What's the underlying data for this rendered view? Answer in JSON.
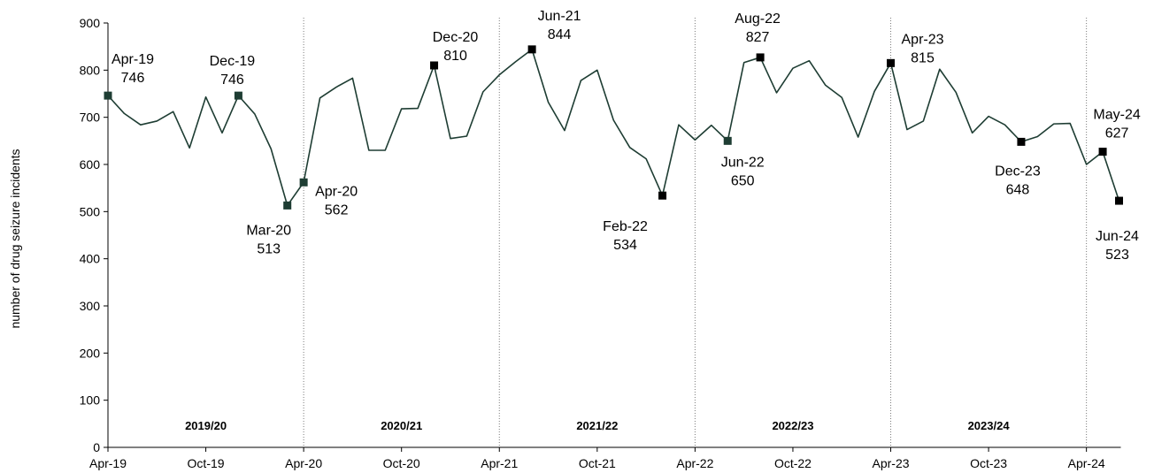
{
  "chart_data": {
    "type": "line",
    "ylabel": "number of drug seizure incidents",
    "xlabel": "",
    "ylim": [
      0,
      900
    ],
    "y_ticks": [
      0,
      100,
      200,
      300,
      400,
      500,
      600,
      700,
      800,
      900
    ],
    "x_tick_labels": [
      "Apr-19",
      "Oct-19",
      "Apr-20",
      "Oct-20",
      "Apr-21",
      "Oct-21",
      "Apr-22",
      "Oct-22",
      "Apr-23",
      "Oct-23",
      "Apr-24"
    ],
    "x_tick_indices": [
      0,
      6,
      12,
      18,
      24,
      30,
      36,
      42,
      48,
      54,
      60
    ],
    "line_color": "#1e3d33",
    "periods": [
      "2019/20",
      "2020/21",
      "2021/22",
      "2022/23",
      "2023/24"
    ],
    "period_separator_indices": [
      12,
      24,
      36,
      48,
      60
    ],
    "series": [
      {
        "values": [
          746,
          708,
          684,
          692,
          712,
          635,
          743,
          667,
          746,
          707,
          633,
          513,
          562,
          741,
          764,
          783,
          630,
          630,
          718,
          719,
          810,
          655,
          660,
          754,
          790,
          818,
          844,
          732,
          672,
          778,
          800,
          694,
          636,
          612,
          534,
          684,
          652,
          683,
          650,
          816,
          827,
          752,
          804,
          820,
          768,
          742,
          658,
          755,
          815,
          674,
          692,
          802,
          753,
          667,
          702,
          684,
          648,
          659,
          686,
          687,
          600,
          627,
          523
        ]
      }
    ],
    "annotations": [
      {
        "index": 0,
        "label": "Apr-19",
        "value": "746"
      },
      {
        "index": 8,
        "label": "Dec-19",
        "value": "746"
      },
      {
        "index": 11,
        "label": "Mar-20",
        "value": "513"
      },
      {
        "index": 12,
        "label": "Apr-20",
        "value": "562"
      },
      {
        "index": 20,
        "label": "Dec-20",
        "value": "810"
      },
      {
        "index": 26,
        "label": "Jun-21",
        "value": "844"
      },
      {
        "index": 34,
        "label": "Feb-22",
        "value": "534"
      },
      {
        "index": 38,
        "label": "Jun-22",
        "value": "650"
      },
      {
        "index": 40,
        "label": "Aug-22",
        "value": "827"
      },
      {
        "index": 48,
        "label": "Apr-23",
        "value": "815"
      },
      {
        "index": 56,
        "label": "Dec-23",
        "value": "648"
      },
      {
        "index": 61,
        "label": "May-24",
        "value": "627"
      },
      {
        "index": 62,
        "label": "Jun-24",
        "value": "523"
      }
    ]
  }
}
